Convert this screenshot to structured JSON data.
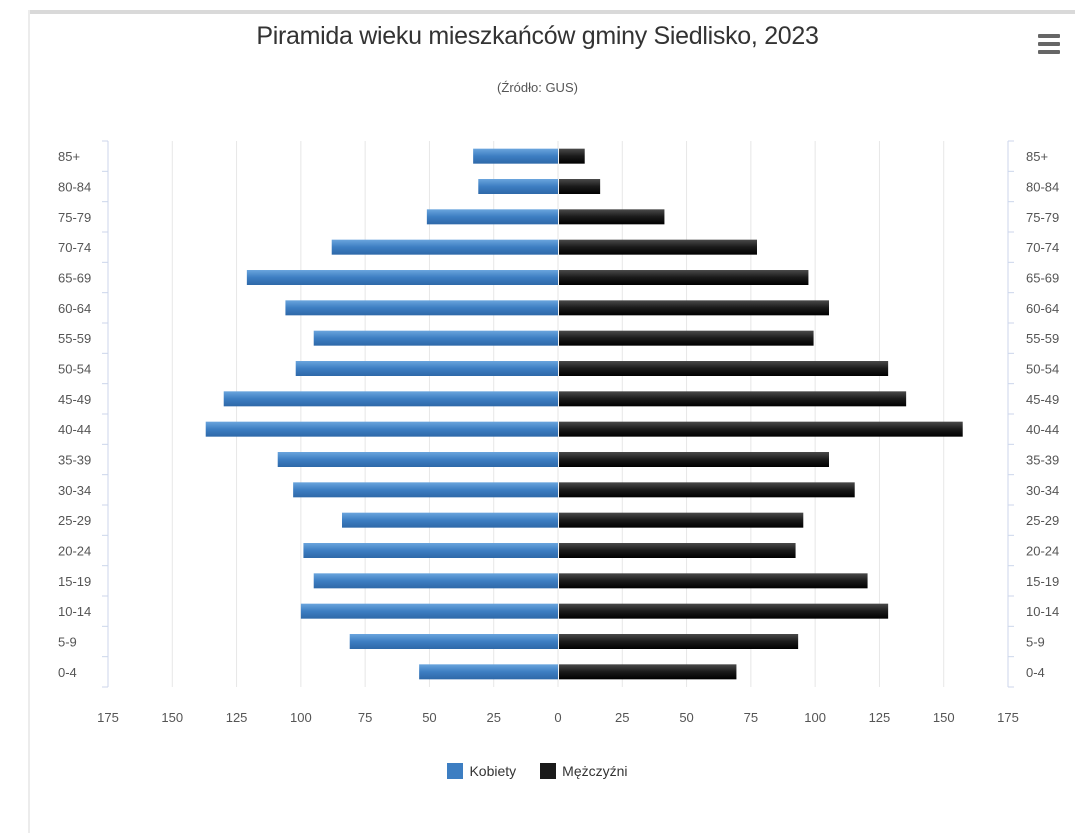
{
  "title": "Piramida wieku mieszkańców gminy Siedlisko, 2023",
  "subtitle": "(Źródło: GUS)",
  "menu_icon": "hamburger-menu-icon",
  "colors": {
    "female": "#3d7ec2",
    "male": "#1a1a1a",
    "grid": "#e6e6e6"
  },
  "legend": [
    {
      "label": "Kobiety",
      "color": "#3d7ec2"
    },
    {
      "label": "Mężczyźni",
      "color": "#1a1a1a"
    }
  ],
  "chart_data": {
    "type": "bar",
    "orientation": "horizontal-pyramid",
    "title": "Piramida wieku mieszkańców gminy Siedlisko, 2023",
    "subtitle": "(Źródło: GUS)",
    "categories": [
      "85+",
      "80-84",
      "75-79",
      "70-74",
      "65-69",
      "60-64",
      "55-59",
      "50-54",
      "45-49",
      "40-44",
      "35-39",
      "30-34",
      "25-29",
      "20-24",
      "15-19",
      "10-14",
      "5-9",
      "0-4"
    ],
    "series": [
      {
        "name": "Kobiety",
        "values": [
          33,
          31,
          51,
          88,
          121,
          106,
          95,
          102,
          130,
          137,
          109,
          103,
          84,
          99,
          95,
          100,
          81,
          54
        ]
      },
      {
        "name": "Mężczyźni",
        "values": [
          10,
          16,
          41,
          77,
          97,
          105,
          99,
          128,
          135,
          157,
          105,
          115,
          95,
          92,
          120,
          128,
          93,
          69
        ]
      }
    ],
    "x_ticks": [
      "175",
      "150",
      "125",
      "100",
      "75",
      "50",
      "25",
      "0",
      "25",
      "50",
      "75",
      "100",
      "125",
      "150",
      "175"
    ],
    "xlim": [
      -175,
      175
    ],
    "grid": true,
    "legend_position": "bottom"
  }
}
